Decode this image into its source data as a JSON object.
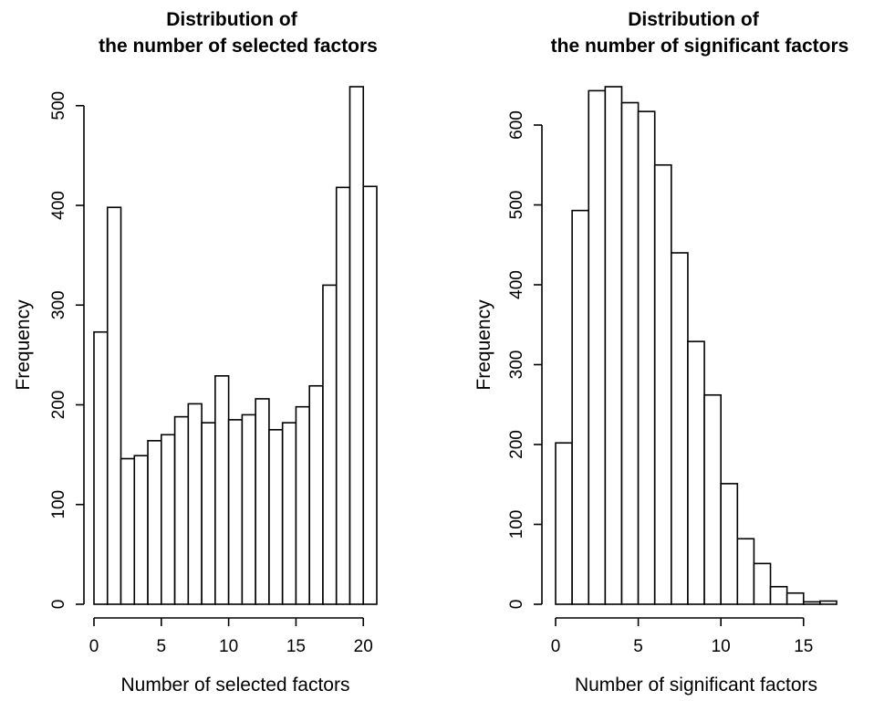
{
  "chart_data": [
    {
      "type": "bar",
      "title_lines": [
        "Distribution of",
        "the number of selected factors"
      ],
      "xlabel": "Number of selected factors",
      "ylabel": "Frequency",
      "bin_starts": [
        0,
        1,
        2,
        3,
        4,
        5,
        6,
        7,
        8,
        9,
        10,
        11,
        12,
        13,
        14,
        15,
        16,
        17,
        18,
        19,
        20
      ],
      "bin_width": 1,
      "values": [
        273,
        398,
        146,
        149,
        164,
        170,
        188,
        201,
        182,
        229,
        185,
        190,
        206,
        175,
        182,
        198,
        219,
        320,
        418,
        519,
        419
      ],
      "xticks": [
        0,
        5,
        10,
        15,
        20
      ],
      "xtick_labels": [
        "0",
        "5",
        "10",
        "15",
        "20"
      ],
      "yticks": [
        0,
        100,
        200,
        300,
        400,
        500
      ],
      "ytick_labels": [
        "0",
        "100",
        "200",
        "300",
        "400",
        "500"
      ],
      "xlim": [
        0,
        21
      ],
      "ylim": [
        0,
        519
      ],
      "grid": false
    },
    {
      "type": "bar",
      "title_lines": [
        "Distribution of",
        "the number of significant factors"
      ],
      "xlabel": "Number of significant factors",
      "ylabel": "Frequency",
      "bin_starts": [
        0,
        1,
        2,
        3,
        4,
        5,
        6,
        7,
        8,
        9,
        10,
        11,
        12,
        13,
        14,
        15,
        16
      ],
      "bin_width": 1,
      "values": [
        202,
        493,
        643,
        648,
        628,
        617,
        550,
        440,
        329,
        262,
        151,
        82,
        51,
        22,
        14,
        3,
        4
      ],
      "xticks": [
        0,
        5,
        10,
        15
      ],
      "xtick_labels": [
        "0",
        "5",
        "10",
        "15"
      ],
      "yticks": [
        0,
        100,
        200,
        300,
        400,
        500,
        600
      ],
      "ytick_labels": [
        "0",
        "100",
        "200",
        "300",
        "400",
        "500",
        "600"
      ],
      "xlim": [
        0,
        17
      ],
      "ylim": [
        0,
        648
      ],
      "grid": false
    }
  ]
}
